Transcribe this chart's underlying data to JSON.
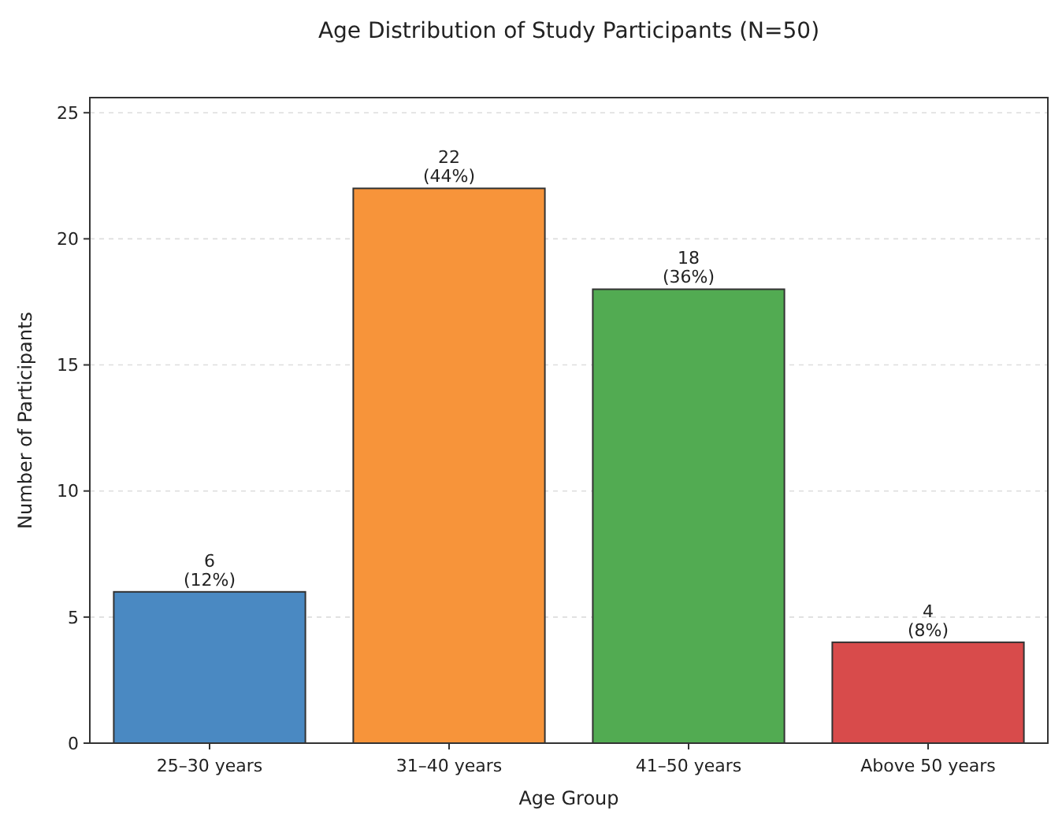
{
  "chart_data": {
    "type": "bar",
    "title": "Age Distribution of Study Participants (N=50)",
    "xlabel": "Age Group",
    "ylabel": "Number of Participants",
    "categories": [
      "25–30 years",
      "31–40 years",
      "41–50 years",
      "Above 50 years"
    ],
    "values": [
      6,
      22,
      18,
      4
    ],
    "colors": [
      "#4a89c2",
      "#f7943a",
      "#52ab52",
      "#d84b4b"
    ],
    "value_labels": [
      "6\n(12%)",
      "22\n(44%)",
      "18\n(36%)",
      "4\n(8%)"
    ],
    "ylim": [
      0,
      25.6
    ],
    "yticks": [
      0,
      5,
      10,
      15,
      20,
      25
    ],
    "grid": "y"
  }
}
